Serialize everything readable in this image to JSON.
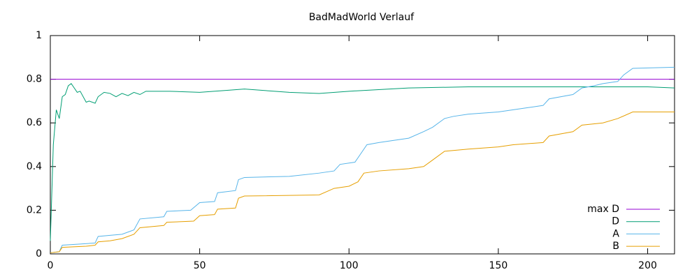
{
  "chart_data": {
    "type": "line",
    "title": "BadMadWorld Verlauf",
    "xlim": [
      0,
      209
    ],
    "xticks": [
      0,
      50,
      100,
      150,
      200
    ],
    "ylim": [
      0,
      1
    ],
    "yticks": [
      0,
      0.2,
      0.4,
      0.6,
      0.8,
      1
    ],
    "grid": false,
    "legend": "bottom-right",
    "series": [
      {
        "name": "max D",
        "color": "#9400d3",
        "x": [
          0,
          209
        ],
        "values": [
          0.8,
          0.8
        ]
      },
      {
        "name": "D",
        "color": "#009e73",
        "x": [
          0,
          1,
          2,
          3,
          4,
          5,
          6,
          7,
          8,
          9,
          10,
          12,
          13,
          15,
          16,
          18,
          20,
          22,
          24,
          26,
          28,
          30,
          32,
          40,
          50,
          60,
          65,
          80,
          90,
          100,
          120,
          140,
          160,
          180,
          200,
          209
        ],
        "values": [
          0.06,
          0.5,
          0.66,
          0.62,
          0.72,
          0.73,
          0.77,
          0.78,
          0.76,
          0.74,
          0.745,
          0.695,
          0.7,
          0.69,
          0.72,
          0.74,
          0.735,
          0.72,
          0.735,
          0.725,
          0.74,
          0.73,
          0.745,
          0.745,
          0.74,
          0.75,
          0.755,
          0.74,
          0.735,
          0.745,
          0.76,
          0.765,
          0.765,
          0.765,
          0.765,
          0.76
        ]
      },
      {
        "name": "A",
        "color": "#56b4e9",
        "x": [
          0,
          3,
          4,
          10,
          15,
          16,
          20,
          24,
          28,
          30,
          38,
          39,
          47,
          50,
          55,
          56,
          62,
          63,
          65,
          80,
          90,
          95,
          97,
          102,
          104,
          106,
          110,
          120,
          125,
          128,
          132,
          135,
          140,
          150,
          155,
          160,
          165,
          167,
          175,
          178,
          182,
          185,
          190,
          192,
          195,
          209
        ],
        "values": [
          0.005,
          0.01,
          0.04,
          0.045,
          0.05,
          0.08,
          0.085,
          0.09,
          0.11,
          0.16,
          0.17,
          0.195,
          0.2,
          0.235,
          0.24,
          0.28,
          0.29,
          0.34,
          0.35,
          0.355,
          0.37,
          0.38,
          0.41,
          0.42,
          0.46,
          0.5,
          0.51,
          0.53,
          0.56,
          0.58,
          0.62,
          0.63,
          0.64,
          0.65,
          0.66,
          0.67,
          0.68,
          0.71,
          0.73,
          0.76,
          0.77,
          0.78,
          0.79,
          0.82,
          0.85,
          0.855
        ]
      },
      {
        "name": "B",
        "color": "#e69f00",
        "x": [
          0,
          3,
          4,
          12,
          15,
          16,
          20,
          24,
          28,
          30,
          38,
          39,
          48,
          50,
          55,
          56,
          62,
          63,
          65,
          90,
          95,
          100,
          103,
          105,
          110,
          120,
          125,
          128,
          132,
          140,
          150,
          155,
          165,
          167,
          175,
          178,
          185,
          190,
          195,
          209
        ],
        "values": [
          0.005,
          0.01,
          0.03,
          0.035,
          0.04,
          0.055,
          0.06,
          0.07,
          0.09,
          0.12,
          0.13,
          0.145,
          0.15,
          0.175,
          0.18,
          0.205,
          0.21,
          0.255,
          0.265,
          0.27,
          0.3,
          0.31,
          0.33,
          0.37,
          0.38,
          0.39,
          0.4,
          0.43,
          0.47,
          0.48,
          0.49,
          0.5,
          0.51,
          0.54,
          0.56,
          0.59,
          0.6,
          0.62,
          0.65,
          0.65
        ]
      }
    ]
  }
}
